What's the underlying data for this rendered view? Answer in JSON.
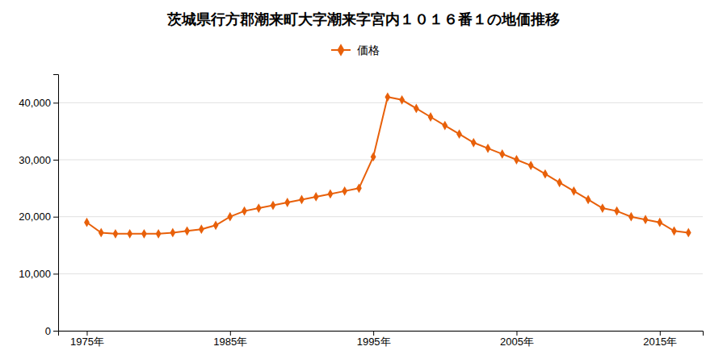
{
  "chart_data": {
    "type": "line",
    "title": "茨城県行方郡潮来町大字潮来字宮内１０１６番１の地価推移",
    "x": [
      1975,
      1976,
      1977,
      1978,
      1979,
      1980,
      1981,
      1982,
      1983,
      1984,
      1985,
      1986,
      1987,
      1988,
      1989,
      1990,
      1991,
      1992,
      1993,
      1994,
      1995,
      1996,
      1997,
      1998,
      1999,
      2000,
      2001,
      2002,
      2003,
      2004,
      2005,
      2006,
      2007,
      2008,
      2009,
      2010,
      2011,
      2012,
      2013,
      2014,
      2015,
      2016,
      2017
    ],
    "series": [
      {
        "name": "価格",
        "color": "#e8600a",
        "marker": "diamond",
        "line_style": "solid",
        "values": [
          19000,
          17200,
          17000,
          17000,
          17000,
          17000,
          17200,
          17500,
          17800,
          18500,
          20000,
          21000,
          21500,
          22000,
          22500,
          23000,
          23500,
          24000,
          24500,
          25000,
          30500,
          41000,
          40500,
          39000,
          37500,
          36000,
          34500,
          33000,
          32000,
          31000,
          30000,
          29000,
          27500,
          26000,
          24500,
          23000,
          21500,
          21000,
          20000,
          19500,
          19000,
          17500,
          17200
        ]
      }
    ],
    "xlim": [
      1973,
      2018
    ],
    "xticks": [
      {
        "value": 1975,
        "label": "1975年"
      },
      {
        "value": 1985,
        "label": "1985年"
      },
      {
        "value": 1995,
        "label": "1995年"
      },
      {
        "value": 2005,
        "label": "2005年"
      },
      {
        "value": 2015,
        "label": "2015年"
      }
    ],
    "ylim": [
      0,
      45000
    ],
    "yticks": [
      0,
      {
        "value": 10000,
        "label": "10,000"
      },
      {
        "value": 20000,
        "label": "20,000"
      },
      {
        "value": 30000,
        "label": "30,000"
      },
      {
        "value": 40000,
        "label": "40,000"
      }
    ],
    "grid": true,
    "legend": "top"
  }
}
